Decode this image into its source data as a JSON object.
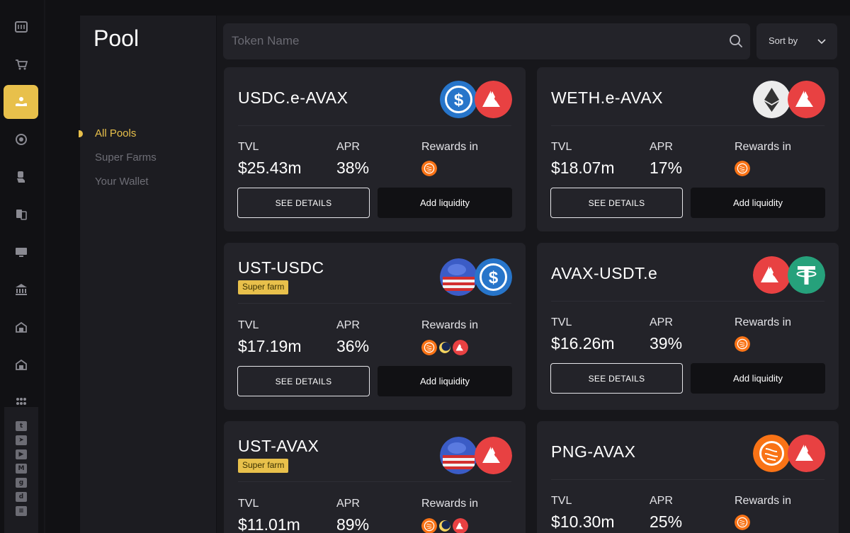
{
  "page": {
    "title": "Pool"
  },
  "search": {
    "placeholder": "Token Name"
  },
  "sort": {
    "label": "Sort by"
  },
  "filters": [
    {
      "label": "All Pools",
      "active": true
    },
    {
      "label": "Super Farms",
      "active": false
    },
    {
      "label": "Your Wallet",
      "active": false
    }
  ],
  "nav_icons": [
    "dashboard-icon",
    "cart-icon",
    "pool-hand-icon",
    "swirl-icon",
    "hand-token-icon",
    "cards-icon",
    "monitor-icon",
    "bank-icon",
    "building-icon",
    "building-alt-icon",
    "apps-icon"
  ],
  "social_icons": [
    "twitter-icon",
    "telegram-icon",
    "youtube-icon",
    "medium-icon",
    "github-icon",
    "discord-icon",
    "docs-icon"
  ],
  "labels": {
    "tvl": "TVL",
    "apr": "APR",
    "rewards": "Rewards in",
    "see_details": "SEE DETAILS",
    "add_liquidity": "Add liquidity"
  },
  "colors": {
    "accent": "#e8c04b",
    "card": "#232329",
    "background": "#111114"
  },
  "pools": [
    {
      "name": "USDC.e-AVAX",
      "tvl": "$25.43m",
      "apr": "38%",
      "tokens": [
        "usdc",
        "avax"
      ],
      "rewards": [
        "png"
      ]
    },
    {
      "name": "WETH.e-AVAX",
      "tvl": "$18.07m",
      "apr": "17%",
      "tokens": [
        "eth",
        "avax"
      ],
      "rewards": [
        "png"
      ]
    },
    {
      "name": "UST-USDC",
      "badge": "Super farm",
      "tvl": "$17.19m",
      "apr": "36%",
      "tokens": [
        "ust",
        "usdc"
      ],
      "rewards": [
        "png",
        "luna",
        "avax"
      ]
    },
    {
      "name": "AVAX-USDT.e",
      "tvl": "$16.26m",
      "apr": "39%",
      "tokens": [
        "avax",
        "usdt"
      ],
      "rewards": [
        "png"
      ]
    },
    {
      "name": "UST-AVAX",
      "badge": "Super farm",
      "tvl": "$11.01m",
      "apr": "89%",
      "tokens": [
        "ust",
        "avax"
      ],
      "rewards": [
        "png",
        "luna",
        "avax"
      ]
    },
    {
      "name": "PNG-AVAX",
      "tvl": "$10.30m",
      "apr": "25%",
      "tokens": [
        "png",
        "avax"
      ],
      "rewards": [
        "png"
      ]
    }
  ]
}
